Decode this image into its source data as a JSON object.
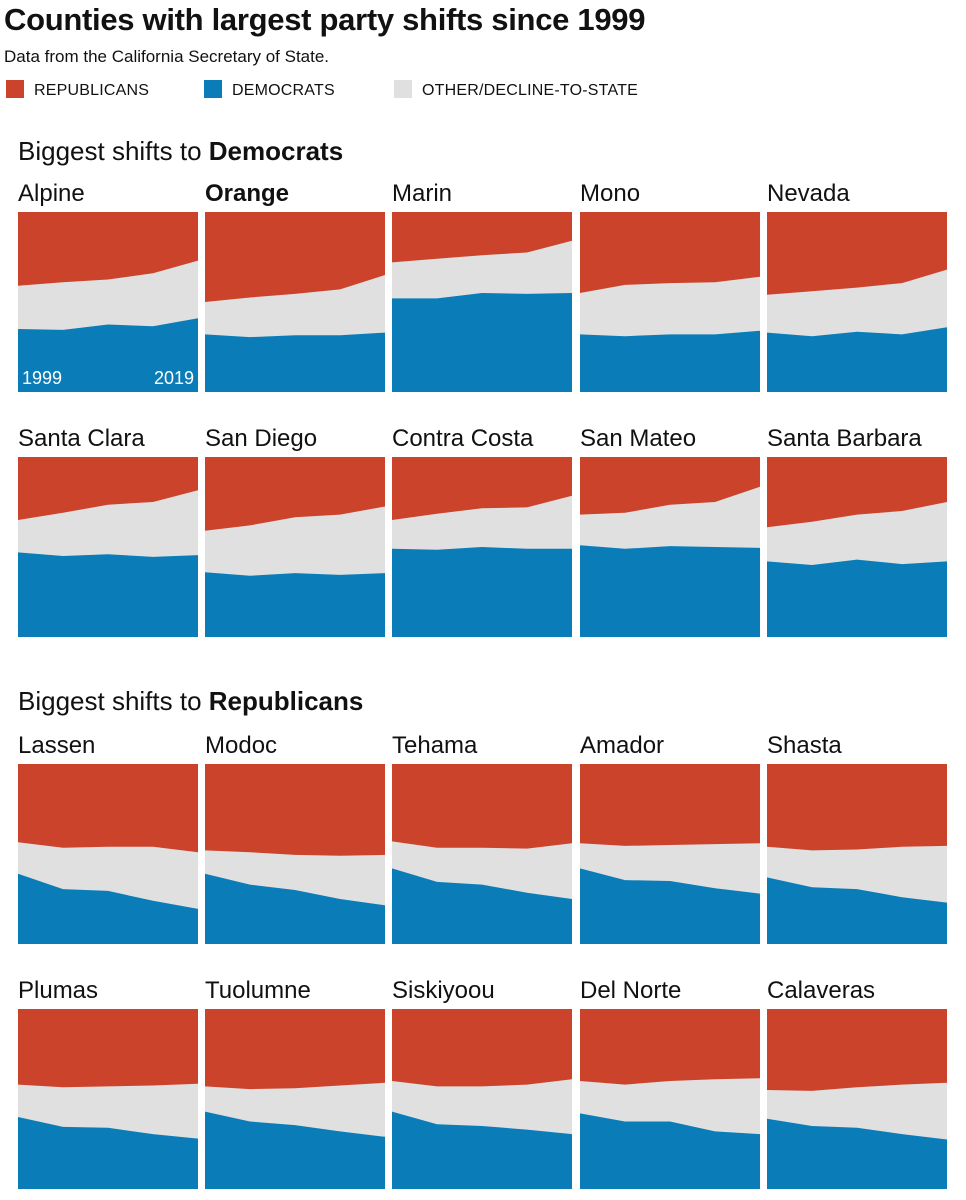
{
  "title": "Counties with largest party shifts since 1999",
  "subtitle": "Data from the California Secretary of State.",
  "legend": [
    {
      "label": "REPUBLICANS",
      "color": "#cc432c"
    },
    {
      "label": "DEMOCRATS",
      "color": "#0a7db8"
    },
    {
      "label": "OTHER/DECLINE-TO-STATE",
      "color": "#e0e0e0"
    }
  ],
  "sections": {
    "democrats": {
      "prefix": "Biggest shifts to ",
      "bold": "Democrats"
    },
    "republicans": {
      "prefix": "Biggest shifts to ",
      "bold": "Republicans"
    }
  },
  "year_labels": {
    "start": "1999",
    "end": "2019"
  },
  "chart_data": {
    "type": "area",
    "stacked": "percent",
    "x": [
      1999,
      2004,
      2009,
      2014,
      2019
    ],
    "series_order": [
      "Democrats",
      "Other/Decline-to-state",
      "Republicans"
    ],
    "colors": {
      "Republicans": "#cc432c",
      "Democrats": "#0a7db8",
      "Other/Decline-to-state": "#e0e0e0"
    },
    "ylim": [
      0,
      100
    ],
    "panels": [
      {
        "county": "Alpine",
        "highlight": false,
        "dem": [
          35,
          34.5,
          37.5,
          36.5,
          41
        ],
        "other": [
          24,
          26.5,
          25,
          29.5,
          32
        ]
      },
      {
        "county": "Orange",
        "highlight": true,
        "dem": [
          32,
          30.5,
          31.5,
          31.5,
          33
        ],
        "other": [
          18,
          22,
          23,
          25.5,
          32
        ]
      },
      {
        "county": "Marin",
        "highlight": false,
        "dem": [
          52,
          52,
          55,
          54.5,
          55
        ],
        "other": [
          20,
          22,
          21,
          23,
          29
        ]
      },
      {
        "county": "Mono",
        "highlight": false,
        "dem": [
          32,
          31,
          32,
          32,
          34
        ],
        "other": [
          23,
          28.5,
          28.5,
          29,
          30
        ]
      },
      {
        "county": "Nevada",
        "highlight": false,
        "dem": [
          33,
          31,
          33.5,
          32,
          36
        ],
        "other": [
          21,
          25,
          24.5,
          28.5,
          32
        ]
      },
      {
        "county": "Santa Clara",
        "highlight": false,
        "dem": [
          47,
          45,
          46,
          44.5,
          45.5
        ],
        "other": [
          18,
          24,
          27.5,
          30.5,
          36
        ]
      },
      {
        "county": "San Diego",
        "highlight": false,
        "dem": [
          36,
          34,
          35.5,
          34.5,
          35.5
        ],
        "other": [
          23,
          28,
          31,
          33.5,
          37
        ]
      },
      {
        "county": "Contra Costa",
        "highlight": false,
        "dem": [
          49,
          48.5,
          50,
          49,
          49
        ],
        "other": [
          16,
          20,
          21.5,
          23,
          29.5
        ]
      },
      {
        "county": "San Mateo",
        "highlight": false,
        "dem": [
          51,
          49,
          50.5,
          50,
          49.5
        ],
        "other": [
          17,
          20,
          23,
          25,
          34
        ]
      },
      {
        "county": "Santa Barbara",
        "highlight": false,
        "dem": [
          42,
          40,
          43,
          40.5,
          42
        ],
        "other": [
          19,
          24,
          25,
          29.5,
          33
        ]
      },
      {
        "county": "Lassen",
        "highlight": false,
        "dem": [
          39,
          30.5,
          29.5,
          24,
          19.5
        ],
        "other": [
          17.5,
          23,
          24.5,
          30,
          31.5
        ]
      },
      {
        "county": "Modoc",
        "highlight": false,
        "dem": [
          39,
          33,
          30,
          25,
          21.5
        ],
        "other": [
          13,
          18,
          19.5,
          24,
          28
        ]
      },
      {
        "county": "Tehama",
        "highlight": false,
        "dem": [
          42,
          34.5,
          33,
          28.5,
          25
        ],
        "other": [
          15,
          19,
          20.5,
          24.5,
          31
        ]
      },
      {
        "county": "Amador",
        "highlight": false,
        "dem": [
          42,
          35.5,
          35,
          31,
          28
        ],
        "other": [
          14,
          19,
          20,
          24.5,
          28
        ]
      },
      {
        "county": "Shasta",
        "highlight": false,
        "dem": [
          37,
          31.5,
          30.5,
          26,
          23
        ],
        "other": [
          17,
          20.5,
          22,
          28,
          31.5
        ]
      },
      {
        "county": "Plumas",
        "highlight": false,
        "dem": [
          40,
          34.5,
          34,
          30.5,
          28
        ],
        "other": [
          18,
          22,
          23,
          27,
          30.5
        ]
      },
      {
        "county": "Tuolumne",
        "highlight": false,
        "dem": [
          43,
          37.5,
          35.5,
          32,
          29
        ],
        "other": [
          14,
          18,
          20.5,
          25.5,
          30
        ]
      },
      {
        "county": "Siskiyoou",
        "highlight": false,
        "dem": [
          43,
          36,
          35,
          33,
          30.5
        ],
        "other": [
          17,
          21,
          22,
          25,
          30.5
        ]
      },
      {
        "county": "Del Norte",
        "highlight": false,
        "dem": [
          42,
          37.5,
          37.5,
          32,
          30.5
        ],
        "other": [
          18,
          20.5,
          22.5,
          29,
          31
        ]
      },
      {
        "county": "Calaveras",
        "highlight": false,
        "dem": [
          39,
          35,
          34,
          30.5,
          27.5
        ],
        "other": [
          16,
          19.5,
          22.5,
          27.5,
          31.5
        ]
      }
    ]
  }
}
